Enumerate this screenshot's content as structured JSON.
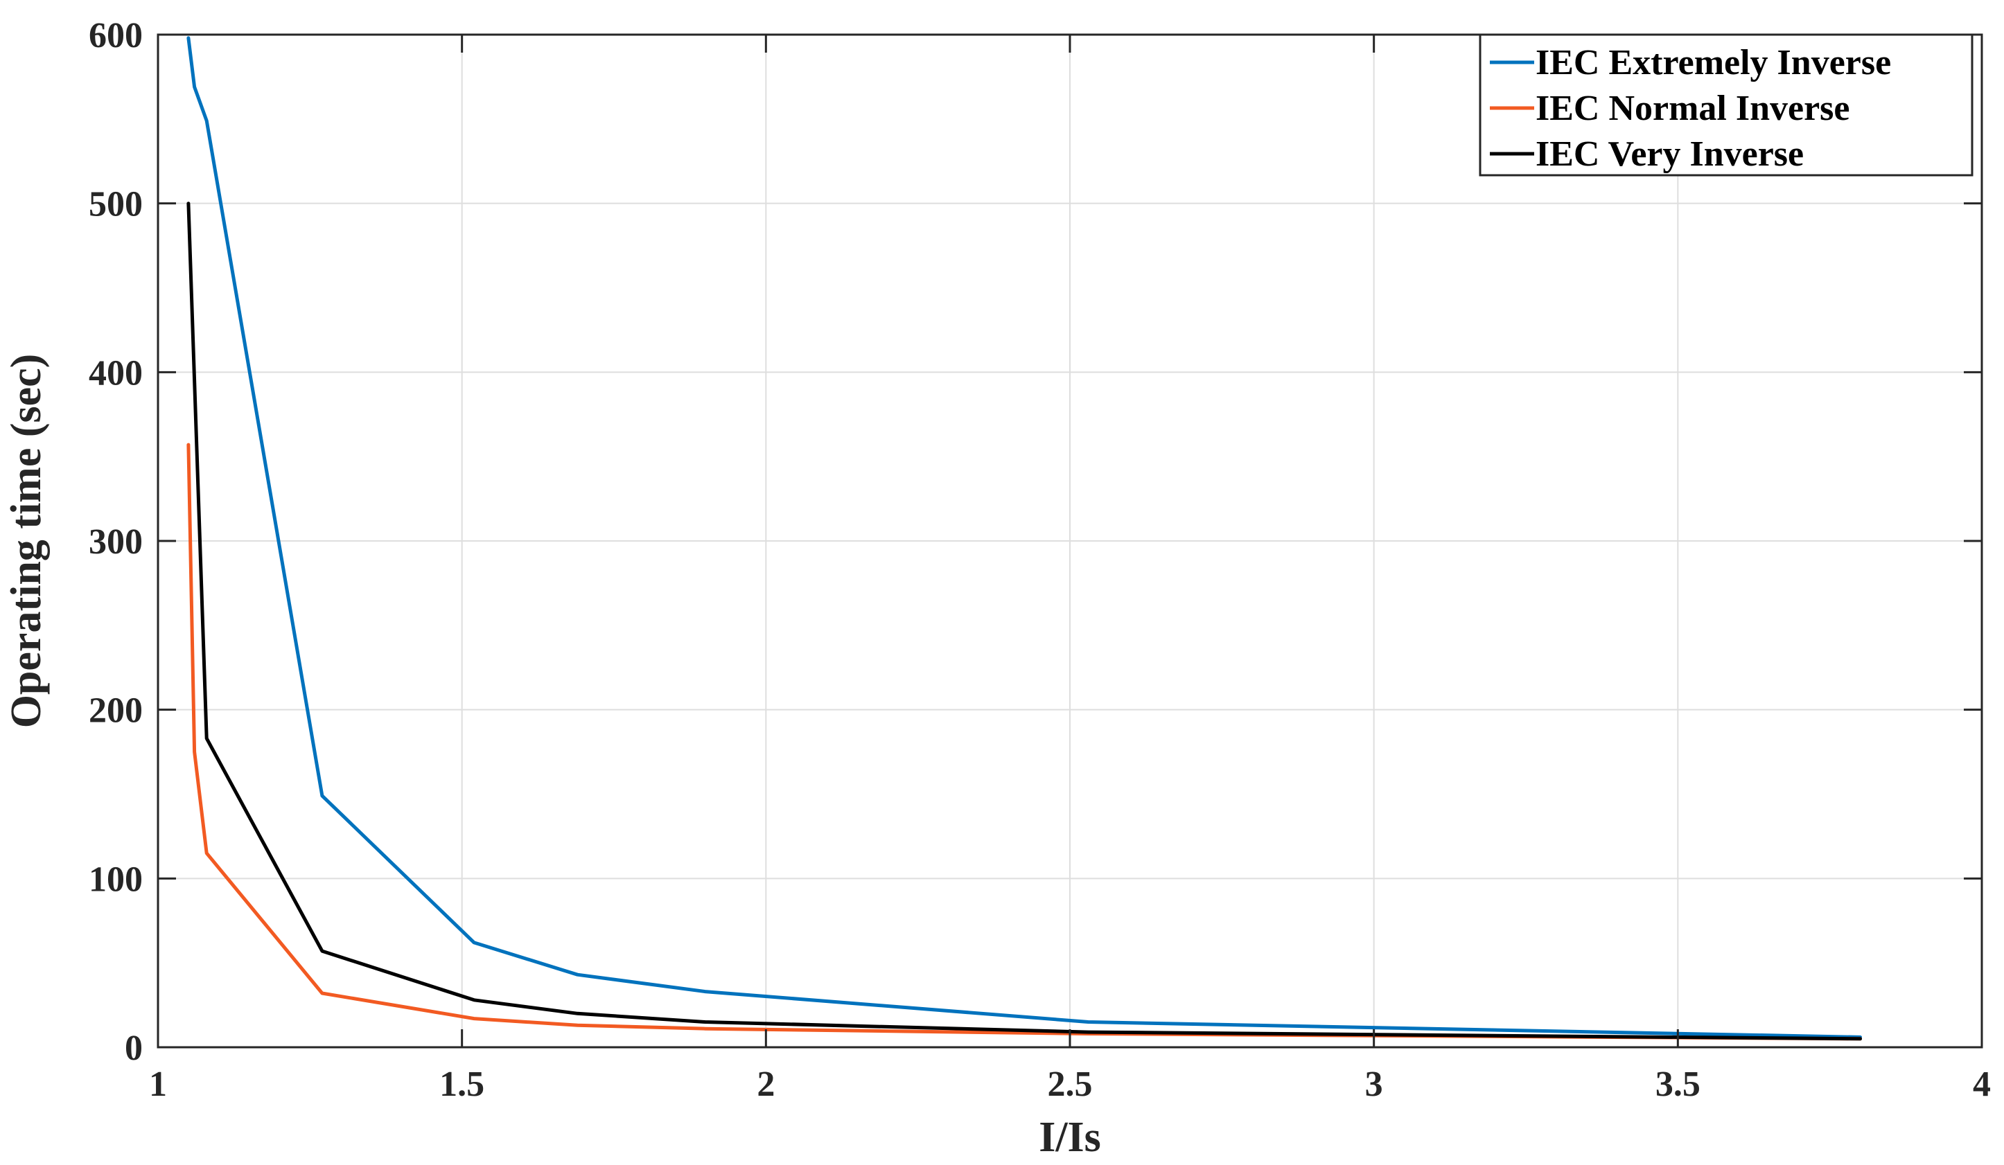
{
  "chart_data": {
    "type": "line",
    "title": "",
    "xlabel": "I/Is",
    "ylabel": "Operating time (sec)",
    "xlim": [
      1,
      4
    ],
    "ylim": [
      0,
      600
    ],
    "xticks": [
      1,
      1.5,
      2,
      2.5,
      3,
      3.5,
      4
    ],
    "xtick_labels": [
      "1",
      "1.5",
      "2",
      "2.5",
      "3",
      "3.5",
      "4"
    ],
    "yticks": [
      0,
      100,
      200,
      300,
      400,
      500,
      600
    ],
    "ytick_labels": [
      "0",
      "100",
      "200",
      "300",
      "400",
      "500",
      "600"
    ],
    "grid": true,
    "legend_position": "top-right",
    "series": [
      {
        "name": "IEC Extremely Inverse",
        "color": "#0072BD",
        "x": [
          1.05,
          1.06,
          1.08,
          1.27,
          1.52,
          1.69,
          1.9,
          2.53,
          3.8
        ],
        "y": [
          598,
          569,
          549,
          149,
          62,
          43,
          33,
          15,
          6
        ]
      },
      {
        "name": "IEC Normal Inverse",
        "color": "#F25A22",
        "x": [
          1.05,
          1.06,
          1.08,
          1.27,
          1.52,
          1.69,
          1.9,
          2.53,
          3.8
        ],
        "y": [
          357,
          175,
          115,
          32,
          17,
          13,
          11,
          8,
          5
        ]
      },
      {
        "name": "IEC Very Inverse",
        "color": "#000000",
        "x": [
          1.05,
          1.08,
          1.27,
          1.52,
          1.69,
          1.9,
          2.53,
          3.8
        ],
        "y": [
          500,
          183,
          57,
          28,
          20,
          15,
          9,
          5
        ]
      }
    ]
  }
}
